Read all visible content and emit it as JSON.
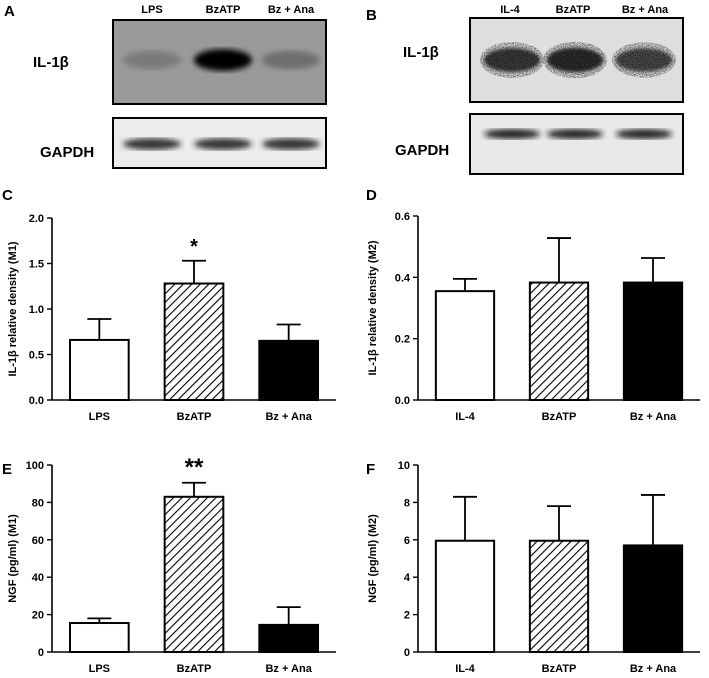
{
  "blots": [
    {
      "panel": "A",
      "lanes": [
        "LPS",
        "BzATP",
        "Bz + Ana"
      ],
      "rows": [
        {
          "protein": "IL-1β",
          "intensity": [
            0.55,
            1.0,
            0.6
          ],
          "texture": "smooth"
        },
        {
          "protein": "GAPDH",
          "intensity": [
            0.85,
            0.85,
            0.85
          ],
          "texture": "smooth"
        }
      ]
    },
    {
      "panel": "B",
      "lanes": [
        "IL-4",
        "BzATP",
        "Bz + Ana"
      ],
      "rows": [
        {
          "protein": "IL-1β",
          "intensity": [
            0.8,
            0.85,
            0.75
          ],
          "texture": "noisy"
        },
        {
          "protein": "GAPDH",
          "intensity": [
            0.9,
            0.9,
            0.9
          ],
          "texture": "smooth"
        }
      ]
    }
  ],
  "chart_data": [
    {
      "panel": "C",
      "type": "bar",
      "ylabel": "IL-1β relative density (M1)",
      "categories": [
        "LPS",
        "BzATP",
        "Bz + Ana"
      ],
      "values": [
        0.66,
        1.28,
        0.65
      ],
      "errors": [
        0.23,
        0.25,
        0.18
      ],
      "fills": [
        "white",
        "hatched",
        "black"
      ],
      "significance": [
        "",
        "*",
        ""
      ],
      "ylim": [
        0,
        2.0
      ],
      "yticks": [
        "0.0",
        "0.5",
        "1.0",
        "1.5",
        "2.0"
      ]
    },
    {
      "panel": "D",
      "type": "bar",
      "ylabel": "IL-1β relative density (M2)",
      "categories": [
        "IL-4",
        "BzATP",
        "Bz + Ana"
      ],
      "values": [
        0.355,
        0.383,
        0.383
      ],
      "errors": [
        0.04,
        0.145,
        0.08
      ],
      "fills": [
        "white",
        "hatched",
        "black"
      ],
      "significance": [
        "",
        "",
        ""
      ],
      "ylim": [
        0,
        0.6
      ],
      "yticks": [
        "0.0",
        "0.2",
        "0.4",
        "0.6"
      ]
    },
    {
      "panel": "E",
      "type": "bar",
      "ylabel": "NGF (pg/ml) (M1)",
      "categories": [
        "LPS",
        "BzATP",
        "Bz + Ana"
      ],
      "values": [
        15.5,
        83,
        14.5
      ],
      "errors": [
        2.5,
        7.5,
        9.5
      ],
      "fills": [
        "white",
        "hatched",
        "black"
      ],
      "significance": [
        "",
        "**",
        ""
      ],
      "ylim": [
        0,
        100
      ],
      "yticks": [
        "0",
        "20",
        "40",
        "60",
        "80",
        "100"
      ]
    },
    {
      "panel": "F",
      "type": "bar",
      "ylabel": "NGF (pg/ml) (M2)",
      "categories": [
        "IL-4",
        "BzATP",
        "Bz + Ana"
      ],
      "values": [
        5.95,
        5.95,
        5.7
      ],
      "errors": [
        2.35,
        1.85,
        2.7
      ],
      "fills": [
        "white",
        "hatched",
        "black"
      ],
      "significance": [
        "",
        "",
        ""
      ],
      "ylim": [
        0,
        10
      ],
      "yticks": [
        "0",
        "2",
        "4",
        "6",
        "8",
        "10"
      ]
    }
  ]
}
